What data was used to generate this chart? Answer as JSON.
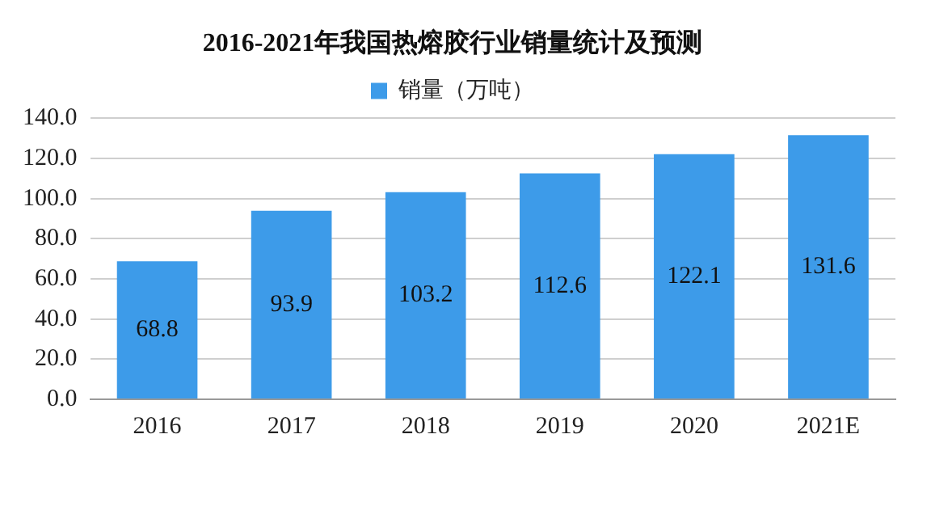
{
  "chart_data": {
    "type": "bar",
    "title": "2016-2021年我国热熔胶行业销量统计及预测",
    "categories": [
      "2016",
      "2017",
      "2018",
      "2019",
      "2020",
      "2021E"
    ],
    "series": [
      {
        "name": "销量（万吨）",
        "color": "#3d9be9",
        "values": [
          68.8,
          93.9,
          103.2,
          112.6,
          122.1,
          131.6
        ]
      }
    ],
    "ylim": [
      0,
      140
    ],
    "yticks": [
      {
        "value": 0,
        "label": "0.0"
      },
      {
        "value": 20,
        "label": "20.0"
      },
      {
        "value": 40,
        "label": "40.0"
      },
      {
        "value": 60,
        "label": "60.0"
      },
      {
        "value": 80,
        "label": "80.0"
      },
      {
        "value": 100,
        "label": "100.0"
      },
      {
        "value": 120,
        "label": "120.0"
      },
      {
        "value": 140,
        "label": "140.0"
      }
    ],
    "grid": "y",
    "legend": "top",
    "data_labels": true
  }
}
